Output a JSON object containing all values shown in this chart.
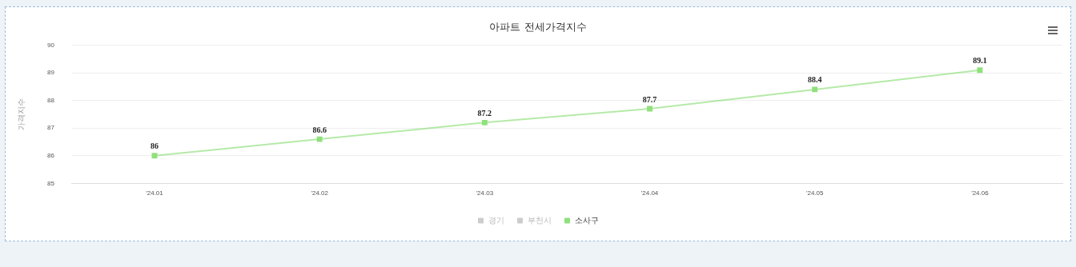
{
  "chart_data": {
    "type": "line",
    "title": "아파트 전세가격지수",
    "ylabel": "가격지수",
    "categories": [
      "'24.01",
      "'24.02",
      "'24.03",
      "'24.04",
      "'24.05",
      "'24.06"
    ],
    "series": [
      {
        "name": "경기",
        "color": "#cccccc",
        "values": [
          null,
          null,
          null,
          null,
          null,
          null
        ]
      },
      {
        "name": "부천시",
        "color": "#cccccc",
        "values": [
          null,
          null,
          null,
          null,
          null,
          null
        ]
      },
      {
        "name": "소사구",
        "color": "#90e07c",
        "values": [
          86,
          86.6,
          87.2,
          87.7,
          88.4,
          89.1
        ]
      }
    ],
    "ylim": [
      85,
      90
    ],
    "yticks": [
      85,
      86,
      87,
      88,
      89,
      90
    ],
    "grid": "y",
    "legend": "bottom",
    "marker": "square",
    "line_style": "solid",
    "data_labels": true
  }
}
